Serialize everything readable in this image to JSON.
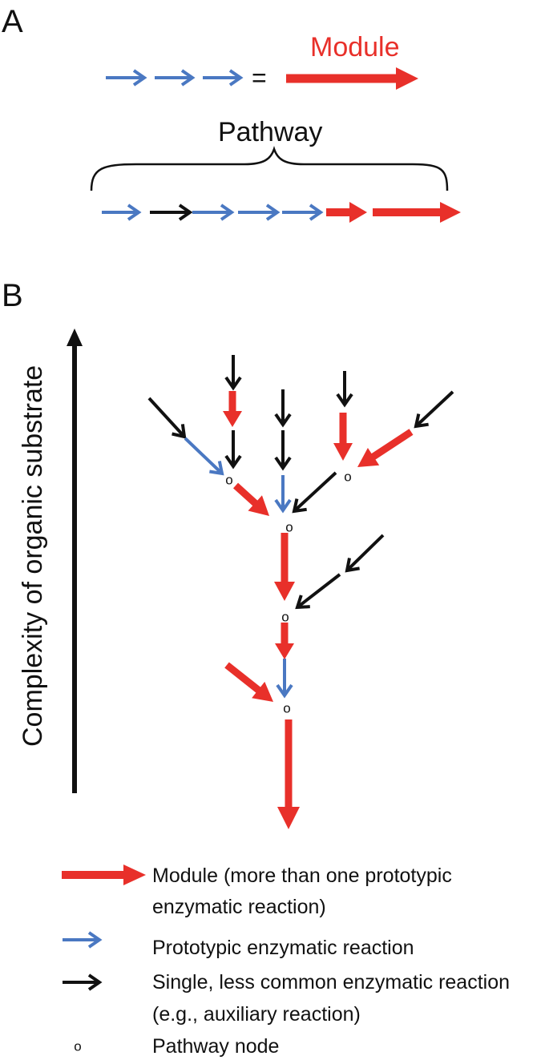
{
  "colors": {
    "module": "#e8302a",
    "prototypic": "#4a78c2",
    "single": "#111111",
    "text": "#111111"
  },
  "panel_a": {
    "letter": "A",
    "module_label": "Module",
    "equals": "=",
    "pathway_label": "Pathway"
  },
  "panel_b": {
    "letter": "B",
    "axis_label": "Complexity of organic substrate",
    "node_symbol": "o"
  },
  "legend": [
    {
      "kind": "module",
      "lines": [
        "Module (more than one prototypic",
        "enzymatic reaction)"
      ]
    },
    {
      "kind": "prototypic",
      "lines": [
        "Prototypic enzymatic reaction"
      ]
    },
    {
      "kind": "single",
      "lines": [
        "Single, less common enzymatic reaction",
        "(e.g., auxiliary reaction)"
      ]
    },
    {
      "kind": "node",
      "lines": [
        "Pathway node"
      ]
    }
  ]
}
